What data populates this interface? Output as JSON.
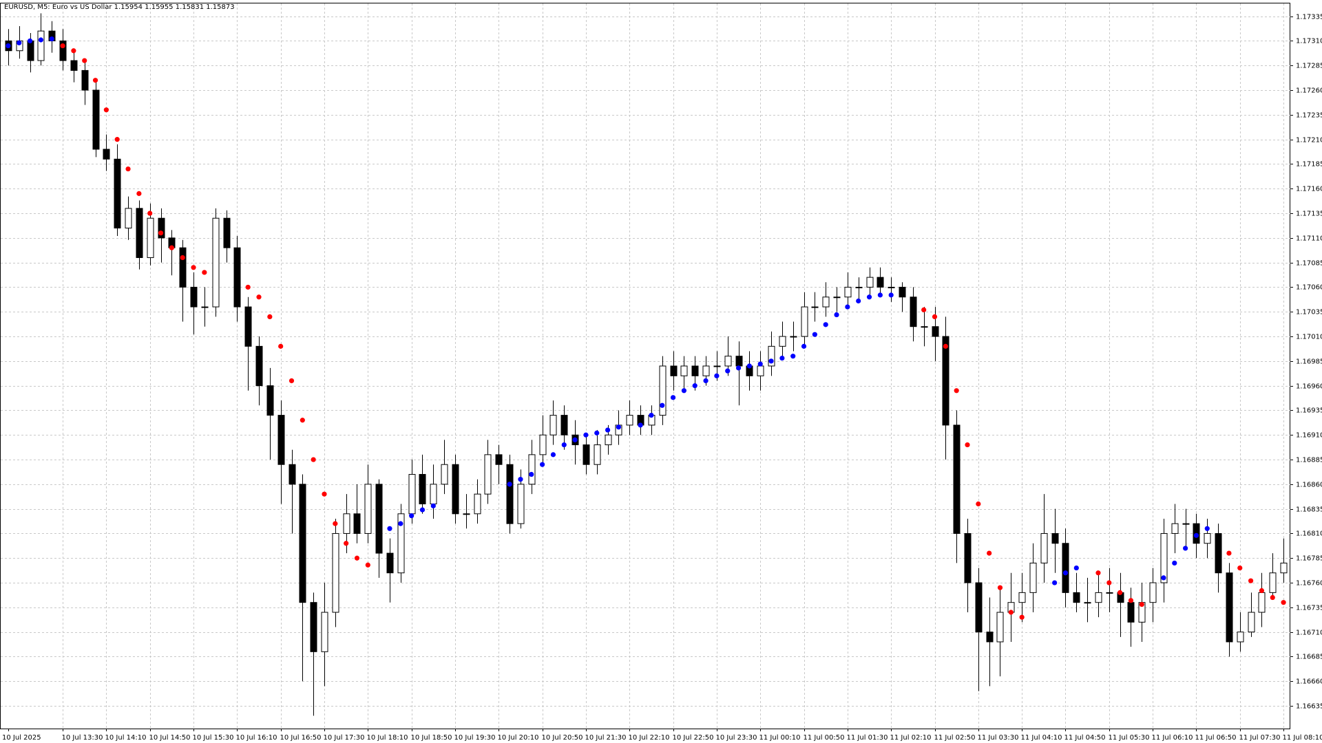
{
  "chart_data": {
    "type": "candlestick",
    "title": "EURUSD, M5:  Euro vs US Dollar  1.15954 1.15955 1.15831 1.15873",
    "grid": true,
    "up_color": "#ffffff",
    "down_color": "#000000",
    "ylim": [
      1.16612,
      1.17348
    ],
    "yticks": [
      1.17335,
      {
        "value": 1.1731,
        "label": "1.17310"
      },
      1.17285,
      {
        "value": 1.1726,
        "label": "1.17260"
      },
      1.17235,
      {
        "value": 1.1721,
        "label": "1.17210"
      },
      1.17185,
      {
        "value": 1.1716,
        "label": "1.17160"
      },
      1.17135,
      {
        "value": 1.1711,
        "label": "1.17110"
      },
      1.17085,
      {
        "value": 1.1706,
        "label": "1.17060"
      },
      1.17035,
      {
        "value": 1.1701,
        "label": "1.17010"
      },
      1.16985,
      {
        "value": 1.1696,
        "label": "1.16960"
      },
      1.16935,
      {
        "value": 1.1691,
        "label": "1.16910"
      },
      1.16885,
      {
        "value": 1.1686,
        "label": "1.16860"
      },
      1.16835,
      {
        "value": 1.1681,
        "label": "1.16810"
      },
      1.16785,
      {
        "value": 1.1676,
        "label": "1.16760"
      },
      1.16735,
      {
        "value": 1.1671,
        "label": "1.16710"
      },
      1.16685,
      {
        "value": 1.1666,
        "label": "1.16660"
      },
      1.16635
    ],
    "categories": [
      "10 Jul 2025",
      null,
      null,
      null,
      null,
      "10 Jul 13:30",
      null,
      null,
      null,
      "10 Jul 14:10",
      null,
      null,
      null,
      "10 Jul 14:50",
      null,
      null,
      null,
      "10 Jul 15:30",
      null,
      null,
      null,
      "10 Jul 16:10",
      null,
      null,
      null,
      "10 Jul 16:50",
      null,
      null,
      null,
      "10 Jul 17:30",
      null,
      null,
      null,
      "10 Jul 18:10",
      null,
      null,
      null,
      "10 Jul 18:50",
      null,
      null,
      null,
      "10 Jul 19:30",
      null,
      null,
      null,
      "10 Jul 20:10",
      null,
      null,
      null,
      "10 Jul 20:50",
      null,
      null,
      null,
      "10 Jul 21:30",
      null,
      null,
      null,
      "10 Jul 22:10",
      null,
      null,
      null,
      "10 Jul 22:50",
      null,
      null,
      null,
      "10 Jul 23:30",
      null,
      null,
      null,
      "11 Jul 00:10",
      null,
      null,
      null,
      "11 Jul 00:50",
      null,
      null,
      null,
      "11 Jul 01:30",
      null,
      null,
      null,
      "11 Jul 02:10",
      null,
      null,
      null,
      "11 Jul 02:50",
      null,
      null,
      null,
      "11 Jul 03:30",
      null,
      null,
      null,
      "11 Jul 04:10",
      null,
      null,
      null,
      "11 Jul 04:50",
      null,
      null,
      null,
      "11 Jul 05:30",
      null,
      null,
      null,
      "11 Jul 06:10",
      null,
      null,
      null,
      "11 Jul 06:50",
      null,
      null,
      null,
      "11 Jul 07:30",
      null,
      null,
      null,
      "11 Jul 08:10"
    ],
    "open": [
      1.1731,
      1.173,
      1.1731,
      1.1729,
      1.1732,
      1.1731,
      1.1729,
      1.1728,
      1.1726,
      1.172,
      1.1719,
      1.1712,
      1.1714,
      1.1709,
      1.1713,
      1.1711,
      1.171,
      1.1706,
      1.1704,
      1.1704,
      1.1713,
      1.171,
      1.1704,
      1.17,
      1.1696,
      1.1693,
      1.1688,
      1.1686,
      1.1674,
      1.1669,
      1.1673,
      1.1681,
      1.1683,
      1.1681,
      1.1686,
      1.1679,
      1.1677,
      1.1683,
      1.1687,
      1.1684,
      1.1686,
      1.1688,
      1.1683,
      1.1683,
      1.1685,
      1.1689,
      1.1688,
      1.1682,
      1.1686,
      1.1689,
      1.1691,
      1.1693,
      1.1691,
      1.169,
      1.1688,
      1.169,
      1.1691,
      1.1692,
      1.1693,
      1.1692,
      1.1693,
      1.1698,
      1.1697,
      1.1698,
      1.1697,
      1.1698,
      1.1698,
      1.1699,
      1.1698,
      1.1697,
      1.1698,
      1.17,
      1.1701,
      1.1701,
      1.1704,
      1.1704,
      1.1705,
      1.1705,
      1.1706,
      1.1706,
      1.1707,
      1.1706,
      1.1706,
      1.1705,
      1.1702,
      1.1702,
      1.1701,
      1.1692,
      1.1681,
      1.1676,
      1.1671,
      1.167,
      1.1673,
      1.1674,
      1.1675,
      1.1678,
      1.1681,
      1.168,
      1.1675,
      1.1674,
      1.1674,
      1.1675,
      1.1675,
      1.1674,
      1.1672,
      1.1674,
      1.1676,
      1.1681,
      1.1682,
      1.1682,
      1.168,
      1.1681,
      1.1677,
      1.167,
      1.1671,
      1.1673,
      1.1675,
      1.1677
    ],
    "high": [
      1.17322,
      1.17325,
      1.17318,
      1.17338,
      1.1733,
      1.17322,
      1.173,
      1.17292,
      1.17268,
      1.17215,
      1.17205,
      1.17152,
      1.17148,
      1.17145,
      1.1714,
      1.17118,
      1.17108,
      1.17075,
      1.1706,
      1.1714,
      1.17138,
      1.17112,
      1.1705,
      1.1701,
      1.16978,
      1.16945,
      1.16895,
      1.1687,
      1.1675,
      1.1676,
      1.16825,
      1.1685,
      1.1686,
      1.1688,
      1.16865,
      1.16805,
      1.1684,
      1.16885,
      1.1689,
      1.1688,
      1.16905,
      1.1689,
      1.1685,
      1.16865,
      1.16905,
      1.169,
      1.1689,
      1.16875,
      1.16905,
      1.1693,
      1.16945,
      1.1694,
      1.16925,
      1.1691,
      1.16915,
      1.1692,
      1.16935,
      1.16945,
      1.1694,
      1.1694,
      1.1699,
      1.16995,
      1.1699,
      1.1699,
      1.1699,
      1.16995,
      1.1701,
      1.17005,
      1.16995,
      1.16995,
      1.17015,
      1.17025,
      1.17025,
      1.17055,
      1.17055,
      1.17065,
      1.1706,
      1.17075,
      1.1707,
      1.1708,
      1.1708,
      1.1707,
      1.17065,
      1.1706,
      1.1704,
      1.1704,
      1.1703,
      1.16935,
      1.16825,
      1.16775,
      1.16745,
      1.16755,
      1.1677,
      1.1677,
      1.168,
      1.1685,
      1.16835,
      1.16815,
      1.1677,
      1.16765,
      1.1677,
      1.16775,
      1.1677,
      1.16755,
      1.1676,
      1.16775,
      1.16825,
      1.1684,
      1.16835,
      1.1683,
      1.16825,
      1.1682,
      1.1678,
      1.1673,
      1.1675,
      1.1677,
      1.1679,
      1.16805
    ],
    "low": [
      1.17285,
      1.17292,
      1.17278,
      1.17285,
      1.17298,
      1.1728,
      1.17268,
      1.17245,
      1.17192,
      1.17178,
      1.17112,
      1.17108,
      1.17078,
      1.17082,
      1.17085,
      1.17072,
      1.17025,
      1.17012,
      1.1702,
      1.1703,
      1.17085,
      1.17025,
      1.16955,
      1.1694,
      1.16885,
      1.1684,
      1.1681,
      1.1666,
      1.16625,
      1.16655,
      1.16715,
      1.1679,
      1.168,
      1.168,
      1.16765,
      1.1674,
      1.1676,
      1.1682,
      1.1683,
      1.16825,
      1.1685,
      1.1682,
      1.16815,
      1.1682,
      1.1684,
      1.1686,
      1.1681,
      1.16815,
      1.1685,
      1.1688,
      1.169,
      1.16895,
      1.1688,
      1.1687,
      1.1687,
      1.1689,
      1.169,
      1.1691,
      1.1691,
      1.1691,
      1.1692,
      1.16955,
      1.16955,
      1.16955,
      1.1696,
      1.16965,
      1.1697,
      1.1694,
      1.16955,
      1.16955,
      1.1697,
      1.1699,
      1.16995,
      1.17,
      1.17025,
      1.1703,
      1.17035,
      1.1704,
      1.17045,
      1.1705,
      1.1705,
      1.17045,
      1.17035,
      1.17005,
      1.17,
      1.16985,
      1.16885,
      1.1678,
      1.1673,
      1.1665,
      1.16655,
      1.16665,
      1.167,
      1.1672,
      1.1673,
      1.1676,
      1.1677,
      1.16735,
      1.1673,
      1.1672,
      1.16725,
      1.1673,
      1.16705,
      1.16695,
      1.167,
      1.1672,
      1.1674,
      1.1679,
      1.16795,
      1.16785,
      1.16785,
      1.1675,
      1.16685,
      1.1669,
      1.16705,
      1.16715,
      1.16745,
      1.1676
    ],
    "close": [
      1.173,
      1.1731,
      1.1729,
      1.1732,
      1.1731,
      1.1729,
      1.1728,
      1.1726,
      1.172,
      1.1719,
      1.1712,
      1.1714,
      1.1709,
      1.1713,
      1.1711,
      1.171,
      1.1706,
      1.1704,
      1.1704,
      1.1713,
      1.171,
      1.1704,
      1.17,
      1.1696,
      1.1693,
      1.1688,
      1.1686,
      1.1674,
      1.1669,
      1.1673,
      1.1681,
      1.1683,
      1.1681,
      1.1686,
      1.1679,
      1.1677,
      1.1683,
      1.1687,
      1.1684,
      1.1686,
      1.1688,
      1.1683,
      1.1683,
      1.1685,
      1.1689,
      1.1688,
      1.1682,
      1.1686,
      1.1689,
      1.1691,
      1.1693,
      1.1691,
      1.169,
      1.1688,
      1.169,
      1.1691,
      1.1692,
      1.1693,
      1.1692,
      1.1693,
      1.1698,
      1.1697,
      1.1698,
      1.1697,
      1.1698,
      1.1698,
      1.1699,
      1.1698,
      1.1697,
      1.1698,
      1.17,
      1.1701,
      1.1701,
      1.1704,
      1.1704,
      1.1705,
      1.1705,
      1.1706,
      1.1706,
      1.1707,
      1.1706,
      1.1706,
      1.1705,
      1.1702,
      1.1702,
      1.1701,
      1.1692,
      1.1681,
      1.1676,
      1.1671,
      1.167,
      1.1673,
      1.1674,
      1.1675,
      1.1678,
      1.1681,
      1.168,
      1.1675,
      1.1674,
      1.1674,
      1.1675,
      1.1675,
      1.1674,
      1.1672,
      1.1674,
      1.1676,
      1.1681,
      1.1682,
      1.1682,
      1.168,
      1.1681,
      1.1677,
      1.167,
      1.1671,
      1.1673,
      1.1675,
      1.1677,
      1.1678
    ],
    "indicators": [
      {
        "color": "#0000ff",
        "values": [
          1.17305,
          1.17308,
          1.1731,
          1.17311,
          1.17312,
          null,
          null,
          null,
          null,
          null,
          null,
          null,
          null,
          null,
          null,
          null,
          null,
          null,
          null,
          null,
          null,
          null,
          null,
          null,
          null,
          null,
          null,
          null,
          null,
          null,
          null,
          null,
          null,
          null,
          null,
          1.16815,
          1.1682,
          1.16828,
          1.16834,
          1.16838,
          null,
          null,
          null,
          null,
          null,
          null,
          1.1686,
          1.16865,
          1.1687,
          1.1688,
          1.1689,
          1.169,
          1.16905,
          1.1691,
          1.16912,
          1.16915,
          1.16918,
          null,
          1.1692,
          1.1693,
          1.1694,
          1.16948,
          1.16955,
          1.1696,
          1.16965,
          1.1697,
          1.16975,
          1.16978,
          1.1698,
          1.16982,
          1.16985,
          1.16988,
          1.1699,
          1.17,
          1.17012,
          1.17022,
          1.17032,
          1.1704,
          1.17046,
          1.1705,
          1.17052,
          1.17052,
          null,
          null,
          null,
          null,
          null,
          null,
          null,
          null,
          null,
          null,
          null,
          null,
          null,
          null,
          1.1676,
          1.1677,
          1.16775,
          null,
          null,
          null,
          null,
          null,
          null,
          null,
          1.16765,
          1.1678,
          1.16795,
          1.16808,
          1.16815,
          null,
          null,
          null,
          null,
          null,
          null,
          null
        ]
      },
      {
        "color": "#ff0000",
        "values": [
          null,
          null,
          null,
          null,
          null,
          1.17305,
          1.173,
          1.1729,
          1.1727,
          1.1724,
          1.1721,
          1.1718,
          1.17155,
          1.17135,
          1.17115,
          1.171,
          1.1709,
          1.1708,
          1.17075,
          null,
          null,
          null,
          1.1706,
          1.1705,
          1.1703,
          1.17,
          1.16965,
          1.16925,
          1.16885,
          1.1685,
          1.1682,
          1.168,
          1.16785,
          1.16778,
          null,
          null,
          null,
          null,
          null,
          null,
          null,
          null,
          null,
          null,
          null,
          null,
          null,
          null,
          null,
          null,
          null,
          null,
          null,
          null,
          null,
          null,
          null,
          null,
          null,
          null,
          null,
          null,
          null,
          null,
          null,
          null,
          null,
          null,
          null,
          null,
          null,
          null,
          null,
          null,
          null,
          null,
          null,
          null,
          null,
          null,
          null,
          null,
          null,
          null,
          1.17037,
          1.1703,
          1.17,
          1.16955,
          1.169,
          1.1684,
          1.1679,
          1.16755,
          1.1673,
          1.16725,
          null,
          null,
          null,
          null,
          null,
          null,
          1.1677,
          1.1676,
          1.1675,
          1.16742,
          1.16738,
          null,
          null,
          null,
          null,
          null,
          null,
          null,
          1.1679,
          1.16775,
          1.16762,
          1.16752,
          1.16745,
          1.1674
        ]
      }
    ]
  }
}
